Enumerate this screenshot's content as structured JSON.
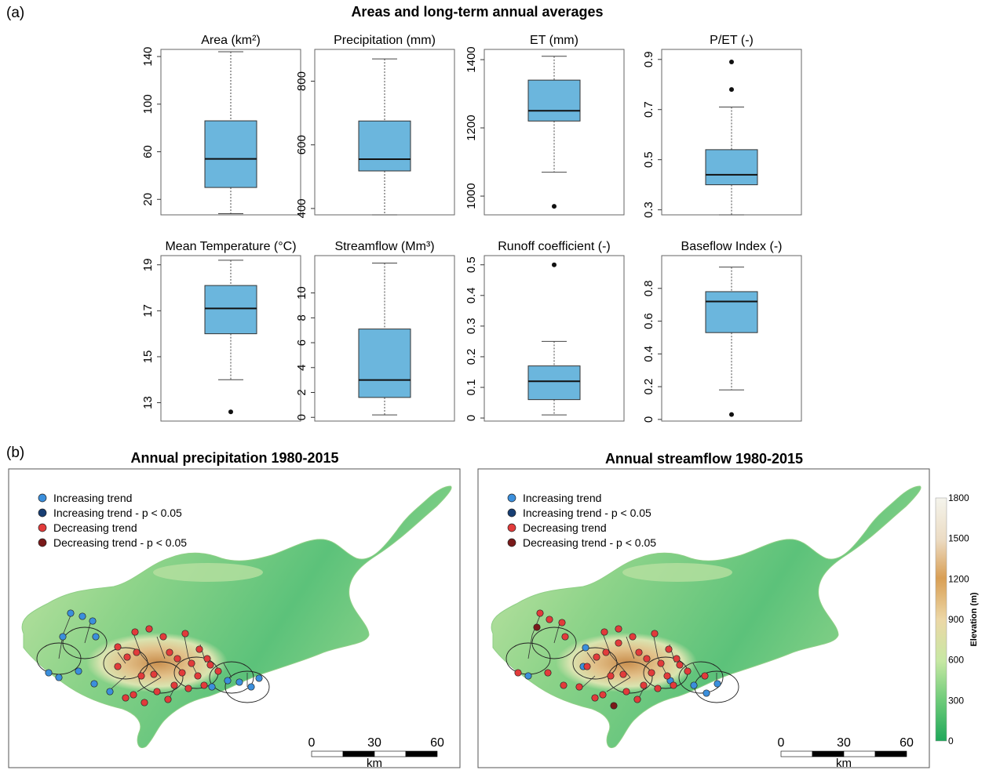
{
  "panel_a_label": "(a)",
  "panel_b_label": "(b)",
  "panel_a_title": "Areas and long-term annual averages",
  "chart_data": [
    {
      "type": "box",
      "title": "Area (km²)",
      "ylim": [
        7,
        146
      ],
      "ticks": [
        20,
        60,
        100,
        140
      ],
      "stats": {
        "min": 8,
        "q1": 30,
        "median": 54,
        "q3": 86,
        "max": 144,
        "outliers": []
      }
    },
    {
      "type": "box",
      "title": "Precipitation (mm)",
      "ylim": [
        380,
        900
      ],
      "ticks": [
        400,
        600,
        800
      ],
      "stats": {
        "min": 380,
        "q1": 518,
        "median": 555,
        "q3": 675,
        "max": 870,
        "outliers": []
      }
    },
    {
      "type": "box",
      "title": "ET (mm)",
      "ylim": [
        945,
        1430
      ],
      "ticks": [
        1000,
        1200,
        1400
      ],
      "stats": {
        "min": 1070,
        "q1": 1220,
        "median": 1250,
        "q3": 1340,
        "max": 1410,
        "outliers": [
          970
        ]
      }
    },
    {
      "type": "box",
      "title": "P/ET (-)",
      "ylim": [
        0.28,
        0.94
      ],
      "ticks": [
        0.3,
        0.5,
        0.7,
        0.9
      ],
      "stats": {
        "min": 0.28,
        "q1": 0.4,
        "median": 0.44,
        "q3": 0.54,
        "max": 0.71,
        "outliers": [
          0.89,
          0.78
        ]
      }
    },
    {
      "type": "box",
      "title": "Mean Temperature (°C)",
      "ylim": [
        12.2,
        19.4
      ],
      "ticks": [
        13,
        15,
        17,
        19
      ],
      "stats": {
        "min": 14.0,
        "q1": 16.0,
        "median": 17.1,
        "q3": 18.1,
        "max": 19.2,
        "outliers": [
          12.6
        ]
      }
    },
    {
      "type": "box",
      "title": "Streamflow (Mm³)",
      "ylim": [
        -0.3,
        13.0
      ],
      "ticks": [
        0,
        2,
        4,
        6,
        8,
        10
      ],
      "stats": {
        "min": 0.2,
        "q1": 1.6,
        "median": 3.0,
        "q3": 7.1,
        "max": 12.4,
        "outliers": []
      }
    },
    {
      "type": "box",
      "title": "Runoff coefficient (-)",
      "ylim": [
        -0.01,
        0.53
      ],
      "ticks": [
        0.0,
        0.1,
        0.2,
        0.3,
        0.4,
        0.5
      ],
      "stats": {
        "min": 0.01,
        "q1": 0.06,
        "median": 0.12,
        "q3": 0.17,
        "max": 0.25,
        "outliers": [
          0.5
        ]
      }
    },
    {
      "type": "box",
      "title": "Baseflow Index (-)",
      "ylim": [
        -0.01,
        1.0
      ],
      "ticks": [
        0.0,
        0.2,
        0.4,
        0.6,
        0.8
      ],
      "stats": {
        "min": 0.18,
        "q1": 0.53,
        "median": 0.72,
        "q3": 0.78,
        "max": 0.93,
        "outliers": [
          0.03
        ]
      }
    }
  ],
  "maps": [
    {
      "title": "Annual precipitation 1980-2015",
      "sites": {
        "increasing": 15,
        "increasing_sig": 0,
        "decreasing": 27,
        "decreasing_sig": 0
      }
    },
    {
      "title": "Annual streamflow 1980-2015",
      "sites": {
        "increasing": 7,
        "increasing_sig": 0,
        "decreasing": 37,
        "decreasing_sig": 2
      }
    }
  ],
  "legend": [
    "Increasing trend",
    "Increasing trend - p < 0.05",
    "Decreasing trend",
    "Decreasing trend - p < 0.05"
  ],
  "scale_ticks": [
    "0",
    "30",
    "60"
  ],
  "scale_unit": "km",
  "elevation_ticks": [
    "1800",
    "1500",
    "1200",
    "900",
    "600",
    "300",
    "0"
  ],
  "elevation_label": "Elevation (m)",
  "colors": {
    "box_fill": "#6bb6dd",
    "increasing": "#3b8fdc",
    "increasing_sig": "#173e73",
    "decreasing": "#e23b3b",
    "decreasing_sig": "#7a1a1a",
    "land_low": "#1fa85a",
    "land_high": "#d29c55"
  }
}
